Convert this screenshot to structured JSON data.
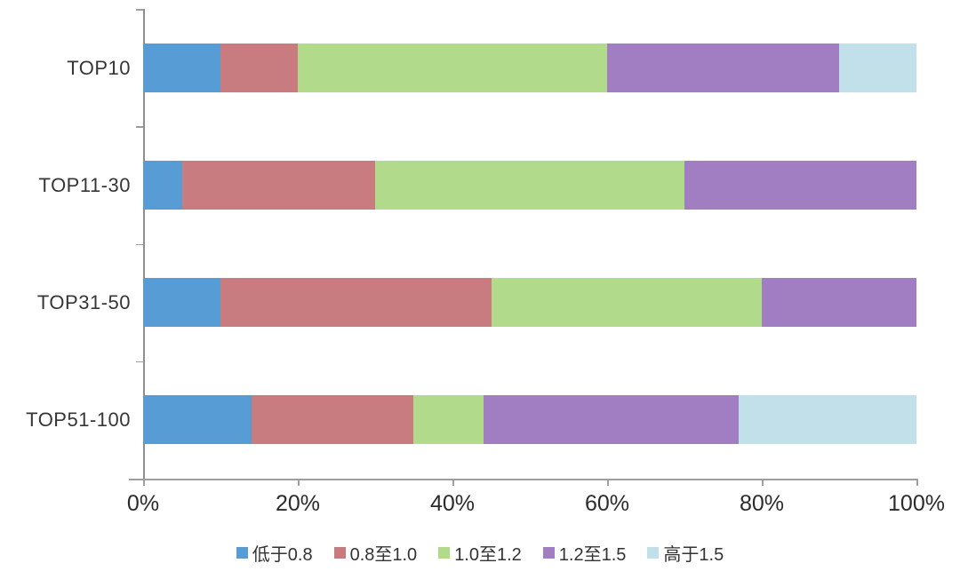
{
  "chart_data": {
    "type": "bar",
    "orientation": "horizontal",
    "stacked": true,
    "title": "",
    "xlabel": "",
    "ylabel": "",
    "unit": "percent",
    "categories": [
      "TOP10",
      "TOP11-30",
      "TOP31-50",
      "TOP51-100"
    ],
    "series": [
      {
        "name": "低于0.8",
        "color": "#579CD4",
        "values": [
          10,
          5,
          10,
          14
        ]
      },
      {
        "name": "0.8至1.0",
        "color": "#C97C80",
        "values": [
          10,
          25,
          35,
          21
        ]
      },
      {
        "name": "1.0至1.2",
        "color": "#B1DA8B",
        "values": [
          40,
          40,
          35,
          9
        ]
      },
      {
        "name": "1.2至1.5",
        "color": "#A17EC2",
        "values": [
          30,
          30,
          20,
          33
        ]
      },
      {
        "name": "高于1.5",
        "color": "#C2E0EA",
        "values": [
          10,
          0,
          0,
          23
        ]
      }
    ],
    "x_axis": {
      "min": 0,
      "max": 100,
      "tick_labels": [
        "0%",
        "20%",
        "40%",
        "60%",
        "80%",
        "100%"
      ]
    },
    "legend_position": "bottom",
    "grid": false,
    "colors": {
      "axis_line": "#8F8F8F",
      "tick_label": "#2B2B2B",
      "category_label": "#363636",
      "background": "#FFFFFF"
    }
  }
}
